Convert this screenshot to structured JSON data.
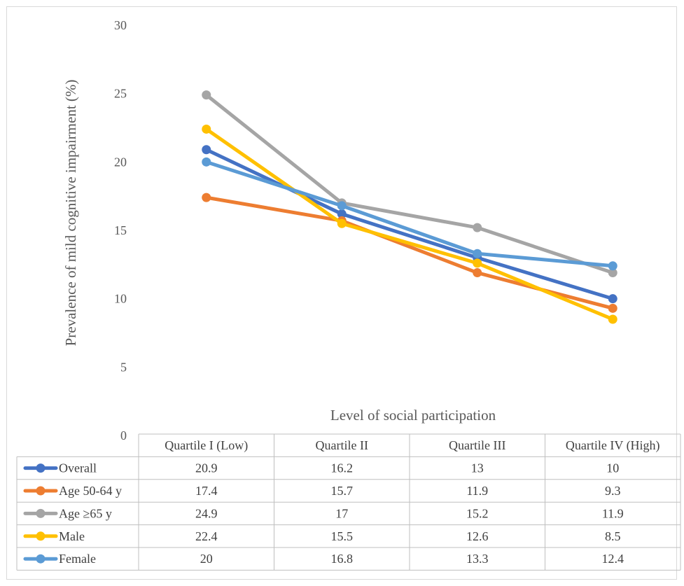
{
  "chart_data": {
    "type": "line",
    "title": "",
    "xlabel": "Level of social participation",
    "ylabel": "Prevalence of mild cognitive impairment (%)",
    "ylim": [
      0,
      30
    ],
    "yticks": [
      0,
      5,
      10,
      15,
      20,
      25,
      30
    ],
    "grid": false,
    "legend": "data table below chart",
    "categories": [
      "Quartile I (Low)",
      "Quartile II",
      "Quartile III",
      "Quartile IV (High)"
    ],
    "series": [
      {
        "name": "Overall",
        "color": "#4472c4",
        "values": [
          20.9,
          16.2,
          13,
          10
        ],
        "labels": [
          "20.9",
          "16.2",
          "13",
          "10"
        ]
      },
      {
        "name": "Age 50-64 y",
        "color": "#ed7d31",
        "values": [
          17.4,
          15.7,
          11.9,
          9.3
        ],
        "labels": [
          "17.4",
          "15.7",
          "11.9",
          "9.3"
        ]
      },
      {
        "name": "Age ≥65 y",
        "color": "#a5a5a5",
        "values": [
          24.9,
          17,
          15.2,
          11.9
        ],
        "labels": [
          "24.9",
          "17",
          "15.2",
          "11.9"
        ]
      },
      {
        "name": "Male",
        "color": "#ffc000",
        "values": [
          22.4,
          15.5,
          12.6,
          8.5
        ],
        "labels": [
          "22.4",
          "15.5",
          "12.6",
          "8.5"
        ]
      },
      {
        "name": "Female",
        "color": "#5b9bd5",
        "values": [
          20,
          16.8,
          13.3,
          12.4
        ],
        "labels": [
          "20",
          "16.8",
          "13.3",
          "12.4"
        ]
      }
    ]
  }
}
